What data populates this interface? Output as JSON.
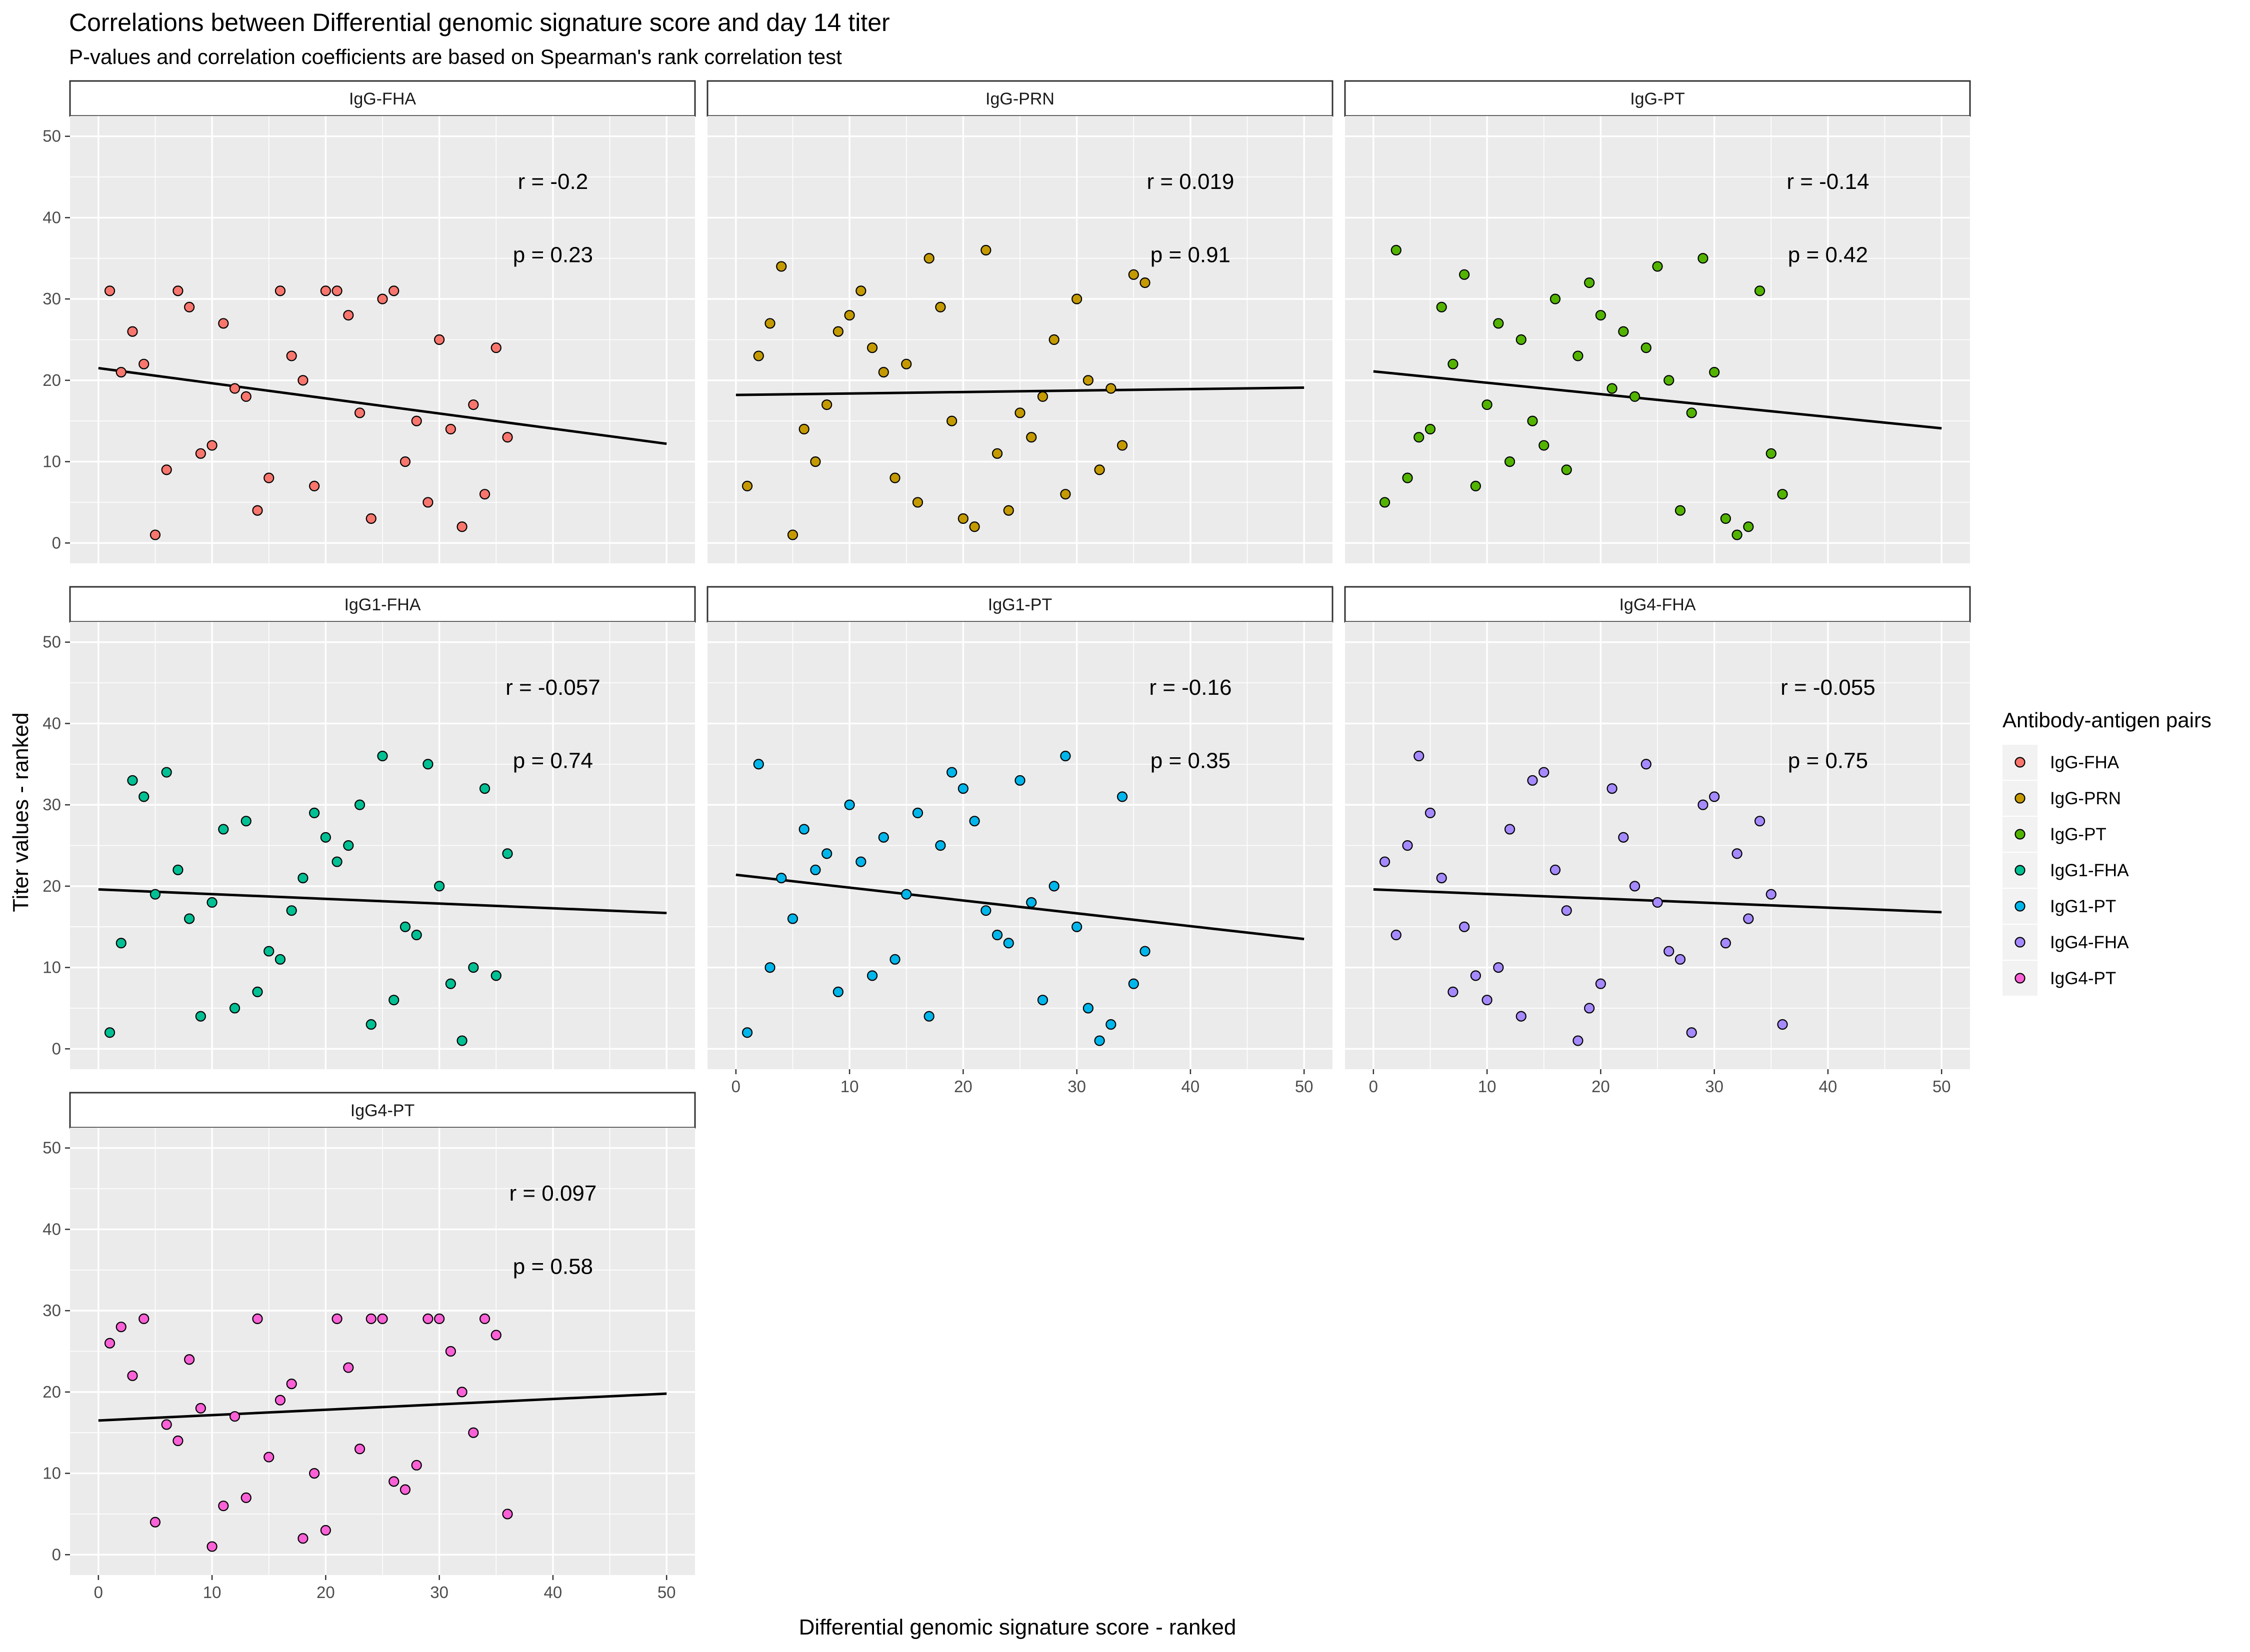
{
  "chart_data": {
    "type": "scatter",
    "title": "Correlations between Differential genomic signature score and day 14 titer",
    "subtitle": "P-values and correlation coefficients are based on Spearman's rank correlation test",
    "xlabel": "Differential genomic signature score - ranked",
    "ylabel": "Titer values - ranked",
    "xlim": [
      -2.5,
      52.5
    ],
    "ylim": [
      -2.5,
      52.5
    ],
    "x_ticks": [
      0,
      10,
      20,
      30,
      40,
      50
    ],
    "y_ticks": [
      0,
      10,
      20,
      30,
      40,
      50
    ],
    "grid": true,
    "legend": {
      "title": "Antibody-antigen pairs",
      "placement": "right"
    },
    "facets": [
      {
        "name": "IgG-FHA",
        "color": "#F8766D",
        "r_label": "r = -0.2",
        "p_label": "p = 0.23",
        "fit": [
          [
            0,
            21.5
          ],
          [
            50,
            12.2
          ]
        ],
        "points": [
          [
            1,
            31
          ],
          [
            2,
            21
          ],
          [
            3,
            26
          ],
          [
            4,
            22
          ],
          [
            5,
            1
          ],
          [
            6,
            9
          ],
          [
            7,
            31
          ],
          [
            8,
            29
          ],
          [
            9,
            11
          ],
          [
            10,
            12
          ],
          [
            11,
            27
          ],
          [
            12,
            19
          ],
          [
            13,
            18
          ],
          [
            14,
            4
          ],
          [
            15,
            8
          ],
          [
            16,
            31
          ],
          [
            17,
            23
          ],
          [
            18,
            20
          ],
          [
            19,
            7
          ],
          [
            20,
            31
          ],
          [
            21,
            31
          ],
          [
            22,
            28
          ],
          [
            23,
            16
          ],
          [
            24,
            3
          ],
          [
            25,
            30
          ],
          [
            26,
            31
          ],
          [
            27,
            10
          ],
          [
            28,
            15
          ],
          [
            29,
            5
          ],
          [
            30,
            25
          ],
          [
            31,
            14
          ],
          [
            32,
            2
          ],
          [
            33,
            17
          ],
          [
            34,
            6
          ],
          [
            35,
            24
          ],
          [
            36,
            13
          ]
        ]
      },
      {
        "name": "IgG-PRN",
        "color": "#C49A00",
        "r_label": "r = 0.019",
        "p_label": "p = 0.91",
        "fit": [
          [
            0,
            18.2
          ],
          [
            50,
            19.1
          ]
        ],
        "points": [
          [
            1,
            7
          ],
          [
            2,
            23
          ],
          [
            3,
            27
          ],
          [
            4,
            34
          ],
          [
            5,
            1
          ],
          [
            6,
            14
          ],
          [
            7,
            10
          ],
          [
            8,
            17
          ],
          [
            9,
            26
          ],
          [
            10,
            28
          ],
          [
            11,
            31
          ],
          [
            12,
            24
          ],
          [
            13,
            21
          ],
          [
            14,
            8
          ],
          [
            15,
            22
          ],
          [
            16,
            5
          ],
          [
            17,
            35
          ],
          [
            18,
            29
          ],
          [
            19,
            15
          ],
          [
            20,
            3
          ],
          [
            21,
            2
          ],
          [
            22,
            36
          ],
          [
            23,
            11
          ],
          [
            24,
            4
          ],
          [
            25,
            16
          ],
          [
            26,
            13
          ],
          [
            27,
            18
          ],
          [
            28,
            25
          ],
          [
            29,
            6
          ],
          [
            30,
            30
          ],
          [
            31,
            20
          ],
          [
            32,
            9
          ],
          [
            33,
            19
          ],
          [
            34,
            12
          ],
          [
            35,
            33
          ],
          [
            36,
            32
          ]
        ]
      },
      {
        "name": "IgG-PT",
        "color": "#53B400",
        "r_label": "r = -0.14",
        "p_label": "p = 0.42",
        "fit": [
          [
            0,
            21.1
          ],
          [
            50,
            14.1
          ]
        ],
        "points": [
          [
            1,
            5
          ],
          [
            2,
            36
          ],
          [
            3,
            8
          ],
          [
            4,
            13
          ],
          [
            5,
            14
          ],
          [
            6,
            29
          ],
          [
            7,
            22
          ],
          [
            8,
            33
          ],
          [
            9,
            7
          ],
          [
            10,
            17
          ],
          [
            11,
            27
          ],
          [
            12,
            10
          ],
          [
            13,
            25
          ],
          [
            14,
            15
          ],
          [
            15,
            12
          ],
          [
            16,
            30
          ],
          [
            17,
            9
          ],
          [
            18,
            23
          ],
          [
            19,
            32
          ],
          [
            20,
            28
          ],
          [
            21,
            19
          ],
          [
            22,
            26
          ],
          [
            23,
            18
          ],
          [
            24,
            24
          ],
          [
            25,
            34
          ],
          [
            26,
            20
          ],
          [
            27,
            4
          ],
          [
            28,
            16
          ],
          [
            29,
            35
          ],
          [
            30,
            21
          ],
          [
            31,
            3
          ],
          [
            32,
            1
          ],
          [
            33,
            2
          ],
          [
            34,
            31
          ],
          [
            35,
            11
          ],
          [
            36,
            6
          ]
        ]
      },
      {
        "name": "IgG1-FHA",
        "color": "#00C094",
        "r_label": "r = -0.057",
        "p_label": "p = 0.74",
        "fit": [
          [
            0,
            19.6
          ],
          [
            50,
            16.7
          ]
        ],
        "points": [
          [
            1,
            2
          ],
          [
            2,
            13
          ],
          [
            3,
            33
          ],
          [
            4,
            31
          ],
          [
            5,
            19
          ],
          [
            6,
            34
          ],
          [
            7,
            22
          ],
          [
            8,
            16
          ],
          [
            9,
            4
          ],
          [
            10,
            18
          ],
          [
            11,
            27
          ],
          [
            12,
            5
          ],
          [
            13,
            28
          ],
          [
            14,
            7
          ],
          [
            15,
            12
          ],
          [
            16,
            11
          ],
          [
            17,
            17
          ],
          [
            18,
            21
          ],
          [
            19,
            29
          ],
          [
            20,
            26
          ],
          [
            21,
            23
          ],
          [
            22,
            25
          ],
          [
            23,
            30
          ],
          [
            24,
            3
          ],
          [
            25,
            36
          ],
          [
            26,
            6
          ],
          [
            27,
            15
          ],
          [
            28,
            14
          ],
          [
            29,
            35
          ],
          [
            30,
            20
          ],
          [
            31,
            8
          ],
          [
            32,
            1
          ],
          [
            33,
            10
          ],
          [
            34,
            32
          ],
          [
            35,
            9
          ],
          [
            36,
            24
          ]
        ]
      },
      {
        "name": "IgG1-PT",
        "color": "#00B6EB",
        "r_label": "r = -0.16",
        "p_label": "p = 0.35",
        "fit": [
          [
            0,
            21.4
          ],
          [
            50,
            13.5
          ]
        ],
        "points": [
          [
            1,
            2
          ],
          [
            2,
            35
          ],
          [
            3,
            10
          ],
          [
            4,
            21
          ],
          [
            5,
            16
          ],
          [
            6,
            27
          ],
          [
            7,
            22
          ],
          [
            8,
            24
          ],
          [
            9,
            7
          ],
          [
            10,
            30
          ],
          [
            11,
            23
          ],
          [
            12,
            9
          ],
          [
            13,
            26
          ],
          [
            14,
            11
          ],
          [
            15,
            19
          ],
          [
            16,
            29
          ],
          [
            17,
            4
          ],
          [
            18,
            25
          ],
          [
            19,
            34
          ],
          [
            20,
            32
          ],
          [
            21,
            28
          ],
          [
            22,
            17
          ],
          [
            23,
            14
          ],
          [
            24,
            13
          ],
          [
            25,
            33
          ],
          [
            26,
            18
          ],
          [
            27,
            6
          ],
          [
            28,
            20
          ],
          [
            29,
            36
          ],
          [
            30,
            15
          ],
          [
            31,
            5
          ],
          [
            32,
            1
          ],
          [
            33,
            3
          ],
          [
            34,
            31
          ],
          [
            35,
            8
          ],
          [
            36,
            12
          ]
        ]
      },
      {
        "name": "IgG4-FHA",
        "color": "#A58AFF",
        "r_label": "r = -0.055",
        "p_label": "p = 0.75",
        "fit": [
          [
            0,
            19.6
          ],
          [
            50,
            16.8
          ]
        ],
        "points": [
          [
            1,
            23
          ],
          [
            2,
            14
          ],
          [
            3,
            25
          ],
          [
            4,
            36
          ],
          [
            5,
            29
          ],
          [
            6,
            21
          ],
          [
            7,
            7
          ],
          [
            8,
            15
          ],
          [
            9,
            9
          ],
          [
            10,
            6
          ],
          [
            11,
            10
          ],
          [
            12,
            27
          ],
          [
            13,
            4
          ],
          [
            14,
            33
          ],
          [
            15,
            34
          ],
          [
            16,
            22
          ],
          [
            17,
            17
          ],
          [
            18,
            1
          ],
          [
            19,
            5
          ],
          [
            20,
            8
          ],
          [
            21,
            32
          ],
          [
            22,
            26
          ],
          [
            23,
            20
          ],
          [
            24,
            35
          ],
          [
            25,
            18
          ],
          [
            26,
            12
          ],
          [
            27,
            11
          ],
          [
            28,
            2
          ],
          [
            29,
            30
          ],
          [
            30,
            31
          ],
          [
            31,
            13
          ],
          [
            32,
            24
          ],
          [
            33,
            16
          ],
          [
            34,
            28
          ],
          [
            35,
            19
          ],
          [
            36,
            3
          ]
        ]
      },
      {
        "name": "IgG4-PT",
        "color": "#FB61D7",
        "r_label": "r = 0.097",
        "p_label": "p = 0.58",
        "fit": [
          [
            0,
            16.5
          ],
          [
            50,
            19.8
          ]
        ],
        "points": [
          [
            1,
            26
          ],
          [
            2,
            28
          ],
          [
            3,
            22
          ],
          [
            4,
            29
          ],
          [
            5,
            4
          ],
          [
            6,
            16
          ],
          [
            7,
            14
          ],
          [
            8,
            24
          ],
          [
            9,
            18
          ],
          [
            10,
            1
          ],
          [
            11,
            6
          ],
          [
            12,
            17
          ],
          [
            13,
            7
          ],
          [
            14,
            29
          ],
          [
            15,
            12
          ],
          [
            16,
            19
          ],
          [
            17,
            21
          ],
          [
            18,
            2
          ],
          [
            19,
            10
          ],
          [
            20,
            3
          ],
          [
            21,
            29
          ],
          [
            22,
            23
          ],
          [
            23,
            13
          ],
          [
            24,
            29
          ],
          [
            25,
            29
          ],
          [
            26,
            9
          ],
          [
            27,
            8
          ],
          [
            28,
            11
          ],
          [
            29,
            29
          ],
          [
            30,
            29
          ],
          [
            31,
            25
          ],
          [
            32,
            20
          ],
          [
            33,
            15
          ],
          [
            34,
            29
          ],
          [
            35,
            27
          ],
          [
            36,
            5
          ]
        ]
      }
    ]
  }
}
